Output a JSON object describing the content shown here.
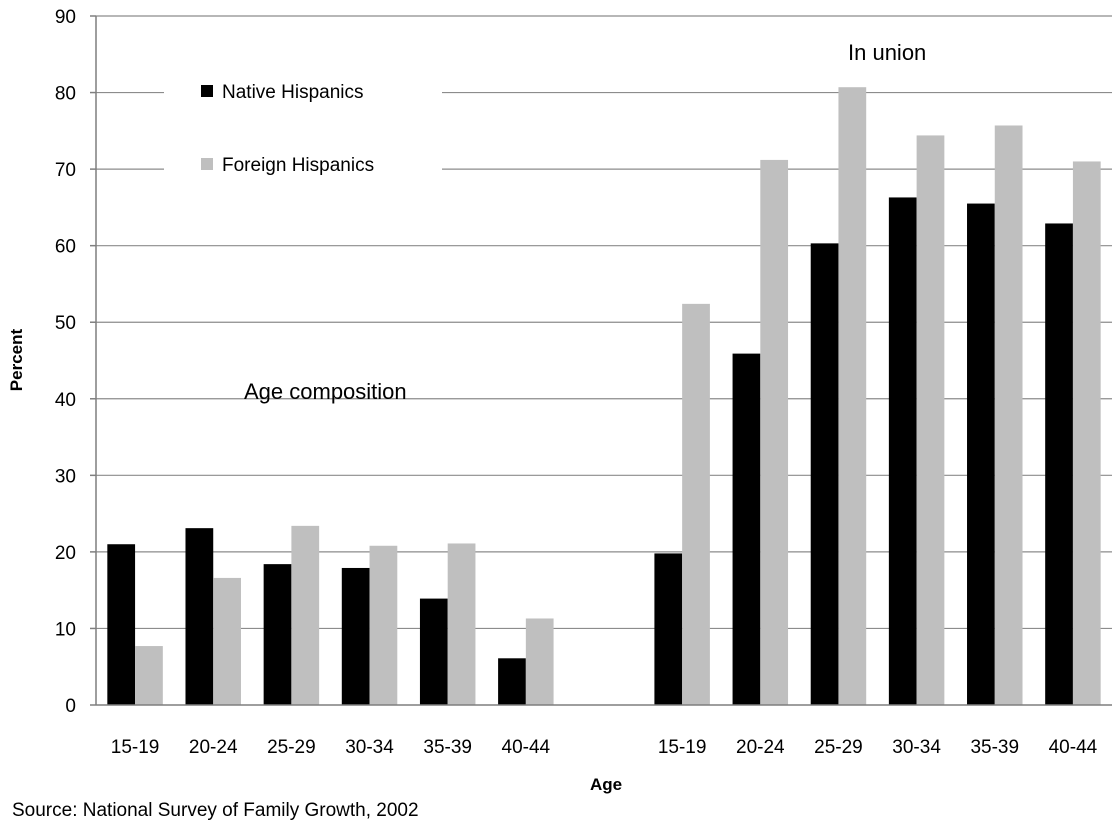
{
  "chart_data": {
    "type": "bar",
    "xlabel": "Age",
    "ylabel": "Percent",
    "ylim": [
      0,
      90
    ],
    "yticks": [
      0,
      10,
      20,
      30,
      40,
      50,
      60,
      70,
      80,
      90
    ],
    "grid": true,
    "legend_placement": "top-left",
    "groups": [
      {
        "annotation": "Age composition",
        "categories": [
          "15-19",
          "20-24",
          "25-29",
          "30-34",
          "35-39",
          "40-44"
        ],
        "series": [
          {
            "name": "Native Hispanics",
            "values": [
              21.0,
              23.1,
              18.4,
              17.9,
              13.9,
              6.1
            ]
          },
          {
            "name": "Foreign Hispanics",
            "values": [
              7.7,
              16.6,
              23.4,
              20.8,
              21.1,
              11.3
            ]
          }
        ]
      },
      {
        "annotation": "In union",
        "categories": [
          "15-19",
          "20-24",
          "25-29",
          "30-34",
          "35-39",
          "40-44"
        ],
        "series": [
          {
            "name": "Native Hispanics",
            "values": [
              19.8,
              45.9,
              60.3,
              66.3,
              65.5,
              62.9
            ]
          },
          {
            "name": "Foreign Hispanics",
            "values": [
              52.4,
              71.2,
              80.7,
              74.4,
              75.7,
              71.0
            ]
          }
        ]
      }
    ],
    "series_colors": [
      "#000000",
      "#bfbfbf"
    ],
    "source": "Source: National Survey of Family Growth, 2002"
  }
}
